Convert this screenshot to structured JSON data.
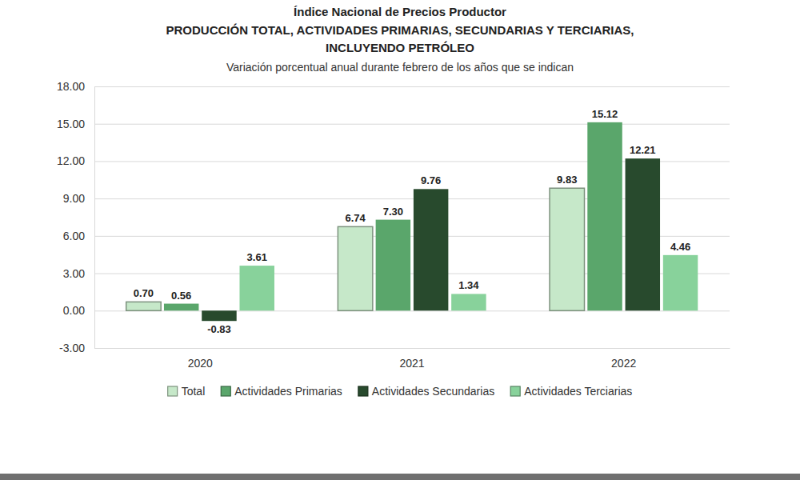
{
  "chart_data": {
    "type": "bar",
    "title": [
      "Índice Nacional de Precios Productor",
      "PRODUCCIÓN TOTAL, ACTIVIDADES PRIMARIAS, SECUNDARIAS Y TERCIARIAS,",
      "INCLUYENDO PETRÓLEO"
    ],
    "subtitle": "Variación porcentual anual durante febrero de los años que se indican",
    "categories": [
      "2020",
      "2021",
      "2022"
    ],
    "series": [
      {
        "name": "Total",
        "color": "#c6e8c9",
        "values": [
          0.7,
          6.74,
          9.83
        ],
        "value_labels": [
          "0.70",
          "6.74",
          "9.83"
        ]
      },
      {
        "name": "Actividades Primarias",
        "color": "#5aa66b",
        "values": [
          0.56,
          7.3,
          15.12
        ],
        "value_labels": [
          "0.56",
          "7.30",
          "15.12"
        ]
      },
      {
        "name": "Actividades Secundarias",
        "color": "#284a2d",
        "values": [
          -0.83,
          9.76,
          12.21
        ],
        "value_labels": [
          "-0.83",
          "9.76",
          "12.21"
        ]
      },
      {
        "name": "Actividades Terciarias",
        "color": "#88d29b",
        "values": [
          3.61,
          1.34,
          4.46
        ],
        "value_labels": [
          "3.61",
          "1.34",
          "4.46"
        ]
      }
    ],
    "ylim": [
      -3,
      18
    ],
    "yticks": [
      {
        "value": -3,
        "label": "-3.00"
      },
      {
        "value": 0,
        "label": "0.00"
      },
      {
        "value": 3,
        "label": "3.00"
      },
      {
        "value": 6,
        "label": "6.00"
      },
      {
        "value": 9,
        "label": "9.00"
      },
      {
        "value": 12,
        "label": "12.00"
      },
      {
        "value": 15,
        "label": "15.00"
      },
      {
        "value": 18,
        "label": "18.00"
      }
    ],
    "grid": true,
    "legend": "bottom",
    "data_labels": true
  }
}
